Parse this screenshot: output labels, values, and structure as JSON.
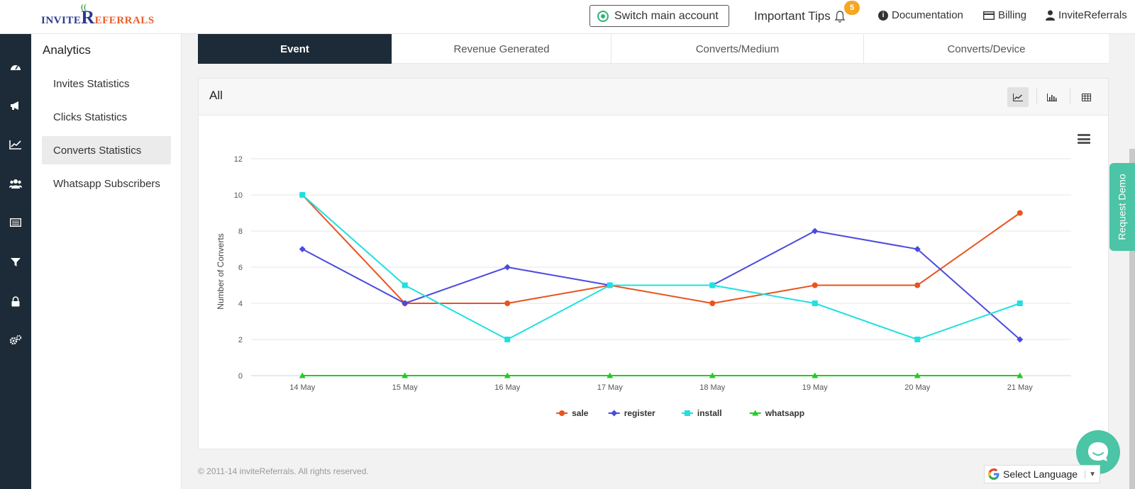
{
  "header": {
    "logo_prefix": "INVITE",
    "logo_r": "R",
    "logo_suffix": "EFERRALS",
    "switch_label": "Switch main account",
    "tips_label": "Important Tips",
    "tips_count": "5",
    "documentation_label": "Documentation",
    "billing_label": "Billing",
    "user_label": "InviteReferrals"
  },
  "left_icons": [
    "dashboard-icon",
    "megaphone-icon",
    "chart-line-icon",
    "users-icon",
    "table-icon",
    "filter-icon",
    "lock-icon",
    "settings-icon"
  ],
  "submenu": {
    "title": "Analytics",
    "items": [
      {
        "label": "Invites Statistics"
      },
      {
        "label": "Clicks Statistics"
      },
      {
        "label": "Converts Statistics",
        "active": true
      },
      {
        "label": "Whatsapp Subscribers"
      }
    ]
  },
  "tabs": [
    {
      "label": "Event",
      "active": true
    },
    {
      "label": "Revenue Generated"
    },
    {
      "label": "Converts/Medium"
    },
    {
      "label": "Converts/Device"
    }
  ],
  "panel": {
    "label": "All"
  },
  "chart_data": {
    "type": "line",
    "title": "",
    "xlabel": "",
    "ylabel": "Number of Converts",
    "ylim": [
      0,
      12
    ],
    "yticks": [
      0,
      2,
      4,
      6,
      8,
      10,
      12
    ],
    "categories": [
      "14 May",
      "15 May",
      "16 May",
      "17 May",
      "18 May",
      "19 May",
      "20 May",
      "21 May"
    ],
    "grid": true,
    "legend": "bottom-center",
    "series": [
      {
        "name": "sale",
        "color": "#e8541e",
        "marker": "circle",
        "values": [
          10,
          4,
          4,
          5,
          4,
          5,
          5,
          9
        ]
      },
      {
        "name": "register",
        "color": "#4a4ae0",
        "marker": "diamond",
        "values": [
          7,
          4,
          6,
          5,
          5,
          8,
          7,
          2
        ]
      },
      {
        "name": "install",
        "color": "#20e0e0",
        "marker": "square",
        "values": [
          10,
          5,
          2,
          5,
          5,
          4,
          2,
          4
        ]
      },
      {
        "name": "whatsapp",
        "color": "#22cc22",
        "marker": "triangle",
        "values": [
          0,
          0,
          0,
          0,
          0,
          0,
          0,
          0
        ]
      }
    ]
  },
  "footer": {
    "copyright": "© 2011-14 inviteReferrals. All rights reserved."
  },
  "widgets": {
    "request_demo": "Request Demo",
    "language": "Select Language"
  }
}
